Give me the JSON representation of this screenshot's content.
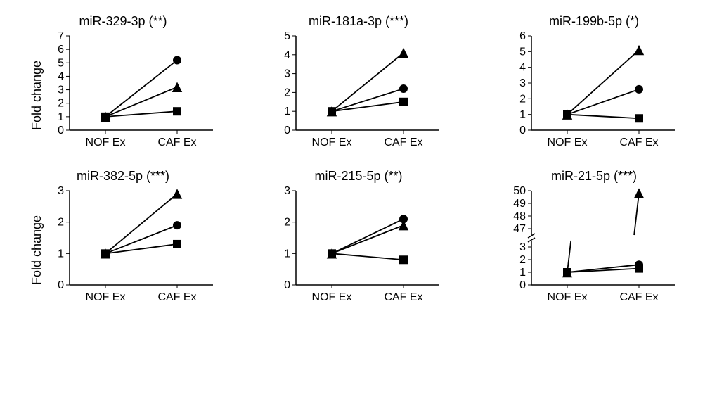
{
  "global": {
    "ylabel": "Fold change",
    "x_categories": [
      "NOF Ex",
      "CAF Ex"
    ],
    "markers": [
      "circle",
      "triangle",
      "square"
    ],
    "line_color": "#000000",
    "marker_color": "#000000",
    "line_width": 1.8,
    "marker_size": 6,
    "background_color": "#ffffff",
    "title_fontsize": 18,
    "tick_fontsize": 16,
    "x_positions": [
      0.25,
      0.75
    ]
  },
  "charts": [
    {
      "title": "miR-329-3p (**)",
      "ylim": [
        0,
        7
      ],
      "yticks": [
        0,
        1,
        2,
        3,
        4,
        5,
        6,
        7
      ],
      "series": [
        {
          "marker": "circle",
          "y": [
            1,
            5.2
          ]
        },
        {
          "marker": "triangle",
          "y": [
            1,
            3.2
          ]
        },
        {
          "marker": "square",
          "y": [
            1,
            1.4
          ]
        }
      ]
    },
    {
      "title": "miR-181a-3p (***)",
      "ylim": [
        0,
        5
      ],
      "yticks": [
        0,
        1,
        2,
        3,
        4,
        5
      ],
      "series": [
        {
          "marker": "triangle",
          "y": [
            1,
            4.1
          ]
        },
        {
          "marker": "circle",
          "y": [
            1,
            2.2
          ]
        },
        {
          "marker": "square",
          "y": [
            1,
            1.5
          ]
        }
      ]
    },
    {
      "title": "miR-199b-5p (*)",
      "ylim": [
        0,
        6
      ],
      "yticks": [
        0,
        1,
        2,
        3,
        4,
        5,
        6
      ],
      "series": [
        {
          "marker": "triangle",
          "y": [
            1,
            5.1
          ]
        },
        {
          "marker": "circle",
          "y": [
            1,
            2.6
          ]
        },
        {
          "marker": "square",
          "y": [
            1,
            0.75
          ]
        }
      ]
    },
    {
      "title": "miR-382-5p (***)",
      "ylim": [
        0,
        3
      ],
      "yticks": [
        0,
        1,
        2,
        3
      ],
      "series": [
        {
          "marker": "triangle",
          "y": [
            1,
            2.9
          ]
        },
        {
          "marker": "circle",
          "y": [
            1,
            1.9
          ]
        },
        {
          "marker": "square",
          "y": [
            1,
            1.3
          ]
        }
      ]
    },
    {
      "title": "miR-215-5p (**)",
      "ylim": [
        0,
        3
      ],
      "yticks": [
        0,
        1,
        2,
        3
      ],
      "series": [
        {
          "marker": "circle",
          "y": [
            1,
            2.1
          ]
        },
        {
          "marker": "triangle",
          "y": [
            1,
            1.9
          ]
        },
        {
          "marker": "square",
          "y": [
            1,
            0.8
          ]
        }
      ]
    },
    {
      "title": "miR-21-5p (***)",
      "broken_axis": true,
      "ylim_lower": [
        0,
        3.5
      ],
      "ylim_upper": [
        46.5,
        50
      ],
      "yticks_lower": [
        0,
        1,
        2,
        3
      ],
      "yticks_upper": [
        47,
        48,
        49,
        50
      ],
      "series": [
        {
          "marker": "triangle",
          "y": [
            1,
            49.8
          ]
        },
        {
          "marker": "circle",
          "y": [
            1,
            1.6
          ]
        },
        {
          "marker": "square",
          "y": [
            1,
            1.3
          ]
        }
      ]
    }
  ]
}
